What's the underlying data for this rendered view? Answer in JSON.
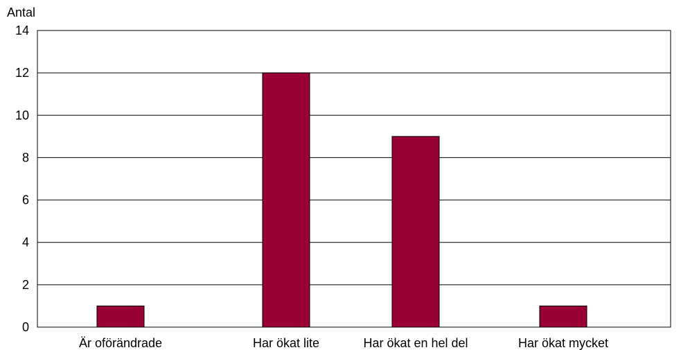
{
  "chart_data": {
    "type": "bar",
    "title": "",
    "ylabel": "Antal",
    "xlabel": "",
    "categories": [
      "Är oförändrade",
      "Har ökat lite",
      "Har ökat en hel del",
      "Har ökat mycket"
    ],
    "values": [
      1,
      12,
      9,
      1
    ],
    "ylim": [
      0,
      14
    ],
    "yticks": [
      0,
      2,
      4,
      6,
      8,
      10,
      12,
      14
    ],
    "grid": true,
    "bar_color": "#990033",
    "legend": "none"
  }
}
